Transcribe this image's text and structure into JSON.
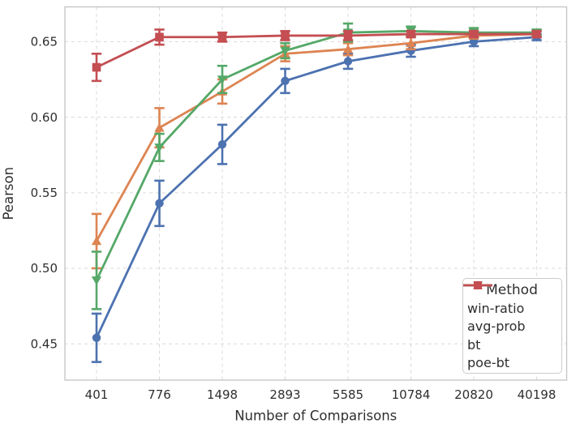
{
  "chart_data": {
    "type": "line",
    "title": "",
    "xlabel": "Number of Comparisons",
    "ylabel": "Pearson",
    "categories": [
      "401",
      "776",
      "1498",
      "2893",
      "5585",
      "10784",
      "20820",
      "40198"
    ],
    "x_scale": "categorical-log-spaced",
    "ylim": [
      0.426,
      0.673
    ],
    "yticks": [
      0.45,
      0.5,
      0.55,
      0.6,
      0.65
    ],
    "grid": "both-dashed",
    "grid_color": "#d9d9d9",
    "spine_color": "#c4c4c4",
    "text_color": "#2f2f2f",
    "error_bars": true,
    "legend": {
      "title": "Method",
      "position": "lower right"
    },
    "series": [
      {
        "name": "win-ratio",
        "marker": "circle",
        "color": "#4C72B0",
        "values": [
          0.454,
          0.543,
          0.582,
          0.624,
          0.637,
          0.644,
          0.65,
          0.653
        ],
        "errors": [
          0.016,
          0.015,
          0.013,
          0.008,
          0.005,
          0.004,
          0.003,
          0.002
        ]
      },
      {
        "name": "avg-prob",
        "marker": "triangle-up",
        "color": "#DD8452",
        "values": [
          0.518,
          0.593,
          0.617,
          0.642,
          0.645,
          0.649,
          0.654,
          0.655
        ],
        "errors": [
          0.018,
          0.013,
          0.008,
          0.005,
          0.004,
          0.004,
          0.002,
          0.002
        ]
      },
      {
        "name": "bt",
        "marker": "triangle-down",
        "color": "#55A868",
        "values": [
          0.492,
          0.58,
          0.625,
          0.644,
          0.656,
          0.657,
          0.656,
          0.656
        ],
        "errors": [
          0.019,
          0.009,
          0.009,
          0.005,
          0.006,
          0.003,
          0.003,
          0.002
        ]
      },
      {
        "name": "poe-bt",
        "marker": "square",
        "color": "#C44E52",
        "values": [
          0.633,
          0.653,
          0.653,
          0.654,
          0.654,
          0.655,
          0.655,
          0.655
        ],
        "errors": [
          0.009,
          0.005,
          0.003,
          0.003,
          0.003,
          0.002,
          0.002,
          0.002
        ]
      }
    ]
  }
}
